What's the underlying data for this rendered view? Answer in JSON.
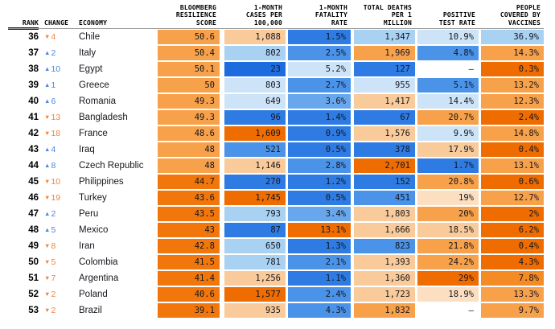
{
  "chart_data": {
    "type": "heatmap",
    "title": "COVID Resilience Ranking (ranks 36-53)",
    "columns": [
      "RANK",
      "CHANGE",
      "ECONOMY",
      "BLOOMBERG\nRESILIENCE\nSCORE",
      "1-MONTH\nCASES PER\n100,000",
      "1-MONTH\nFATALITY\nRATE",
      "TOTAL DEATHS\nPER 1\nMILLION",
      "POSITIVE\nTEST RATE",
      "PEOPLE\nCOVERED BY\nVACCINES"
    ],
    "palette": {
      "B1": "#1c6ce0",
      "B2": "#2e7ce3",
      "B3": "#4a93e8",
      "B4": "#68a7ec",
      "B5": "#a9d1f2",
      "B6": "#cde4f8",
      "W": "#ffffff",
      "O1": "#fcdfc0",
      "O2": "#f9cb9b",
      "O3": "#f7a14b",
      "O4": "#f48b24",
      "O5": "#f1770c",
      "O6": "#ee6c00"
    },
    "change_colors": {
      "up": "#4a86e2",
      "down": "#f0843c"
    },
    "change_icons": {
      "up": "▲",
      "down": "▼"
    },
    "rows": [
      {
        "rank": "36",
        "change": {
          "dir": "down",
          "value": "4"
        },
        "economy": "Chile",
        "cells": [
          {
            "value": "50.6",
            "color": "O3"
          },
          {
            "value": "1,088",
            "color": "O2"
          },
          {
            "value": "1.5%",
            "color": "B2"
          },
          {
            "value": "1,347",
            "color": "B5"
          },
          {
            "value": "10.9%",
            "color": "B6"
          },
          {
            "value": "36.9%",
            "color": "B5"
          }
        ]
      },
      {
        "rank": "37",
        "change": {
          "dir": "up",
          "value": "2"
        },
        "economy": "Italy",
        "cells": [
          {
            "value": "50.4",
            "color": "O3"
          },
          {
            "value": "802",
            "color": "B5"
          },
          {
            "value": "2.5%",
            "color": "B3"
          },
          {
            "value": "1,969",
            "color": "O3"
          },
          {
            "value": "4.8%",
            "color": "B3"
          },
          {
            "value": "14.3%",
            "color": "O3"
          }
        ]
      },
      {
        "rank": "38",
        "change": {
          "dir": "up",
          "value": "10"
        },
        "economy": "Egypt",
        "cells": [
          {
            "value": "50.1",
            "color": "O3"
          },
          {
            "value": "23",
            "color": "B1"
          },
          {
            "value": "5.2%",
            "color": "B6"
          },
          {
            "value": "127",
            "color": "B2"
          },
          {
            "value": "–",
            "color": "W"
          },
          {
            "value": "0.3%",
            "color": "O6"
          }
        ]
      },
      {
        "rank": "39",
        "change": {
          "dir": "up",
          "value": "1"
        },
        "economy": "Greece",
        "cells": [
          {
            "value": "50",
            "color": "O3"
          },
          {
            "value": "803",
            "color": "B6"
          },
          {
            "value": "2.7%",
            "color": "B3"
          },
          {
            "value": "955",
            "color": "B6"
          },
          {
            "value": "5.1%",
            "color": "B3"
          },
          {
            "value": "13.2%",
            "color": "O3"
          }
        ]
      },
      {
        "rank": "40",
        "change": {
          "dir": "up",
          "value": "6"
        },
        "economy": "Romania",
        "cells": [
          {
            "value": "49.3",
            "color": "O3"
          },
          {
            "value": "649",
            "color": "B6"
          },
          {
            "value": "3.6%",
            "color": "B4"
          },
          {
            "value": "1,417",
            "color": "O2"
          },
          {
            "value": "14.4%",
            "color": "B6"
          },
          {
            "value": "12.3%",
            "color": "O3"
          }
        ]
      },
      {
        "rank": "41",
        "change": {
          "dir": "down",
          "value": "13"
        },
        "economy": "Bangladesh",
        "cells": [
          {
            "value": "49.3",
            "color": "O3"
          },
          {
            "value": "96",
            "color": "B2"
          },
          {
            "value": "1.4%",
            "color": "B2"
          },
          {
            "value": "67",
            "color": "B2"
          },
          {
            "value": "20.7%",
            "color": "O3"
          },
          {
            "value": "2.4%",
            "color": "O6"
          }
        ]
      },
      {
        "rank": "42",
        "change": {
          "dir": "down",
          "value": "18"
        },
        "economy": "France",
        "cells": [
          {
            "value": "48.6",
            "color": "O3"
          },
          {
            "value": "1,609",
            "color": "O6"
          },
          {
            "value": "0.9%",
            "color": "B2"
          },
          {
            "value": "1,576",
            "color": "O2"
          },
          {
            "value": "9.9%",
            "color": "B6"
          },
          {
            "value": "14.8%",
            "color": "O3"
          }
        ]
      },
      {
        "rank": "43",
        "change": {
          "dir": "up",
          "value": "4"
        },
        "economy": "Iraq",
        "cells": [
          {
            "value": "48",
            "color": "O3"
          },
          {
            "value": "521",
            "color": "B3"
          },
          {
            "value": "0.5%",
            "color": "B2"
          },
          {
            "value": "378",
            "color": "B2"
          },
          {
            "value": "17.9%",
            "color": "O2"
          },
          {
            "value": "0.4%",
            "color": "O6"
          }
        ]
      },
      {
        "rank": "44",
        "change": {
          "dir": "up",
          "value": "8"
        },
        "economy": "Czech Republic",
        "cells": [
          {
            "value": "48",
            "color": "O3"
          },
          {
            "value": "1,146",
            "color": "O2"
          },
          {
            "value": "2.8%",
            "color": "B3"
          },
          {
            "value": "2,701",
            "color": "O6"
          },
          {
            "value": "1.7%",
            "color": "B2"
          },
          {
            "value": "13.1%",
            "color": "O3"
          }
        ]
      },
      {
        "rank": "45",
        "change": {
          "dir": "down",
          "value": "10"
        },
        "economy": "Philippines",
        "cells": [
          {
            "value": "44.7",
            "color": "O5"
          },
          {
            "value": "270",
            "color": "B2"
          },
          {
            "value": "1.2%",
            "color": "B2"
          },
          {
            "value": "152",
            "color": "B2"
          },
          {
            "value": "20.8%",
            "color": "O3"
          },
          {
            "value": "0.6%",
            "color": "O6"
          }
        ]
      },
      {
        "rank": "46",
        "change": {
          "dir": "down",
          "value": "19"
        },
        "economy": "Turkey",
        "cells": [
          {
            "value": "43.6",
            "color": "O5"
          },
          {
            "value": "1,745",
            "color": "O6"
          },
          {
            "value": "0.5%",
            "color": "B2"
          },
          {
            "value": "451",
            "color": "B3"
          },
          {
            "value": "19%",
            "color": "O1"
          },
          {
            "value": "12.7%",
            "color": "O3"
          }
        ]
      },
      {
        "rank": "47",
        "change": {
          "dir": "up",
          "value": "2"
        },
        "economy": "Peru",
        "cells": [
          {
            "value": "43.5",
            "color": "O5"
          },
          {
            "value": "793",
            "color": "B5"
          },
          {
            "value": "3.4%",
            "color": "B4"
          },
          {
            "value": "1,803",
            "color": "O2"
          },
          {
            "value": "20%",
            "color": "O3"
          },
          {
            "value": "2%",
            "color": "O6"
          }
        ]
      },
      {
        "rank": "48",
        "change": {
          "dir": "up",
          "value": "5"
        },
        "economy": "Mexico",
        "cells": [
          {
            "value": "43",
            "color": "O5"
          },
          {
            "value": "87",
            "color": "B2"
          },
          {
            "value": "13.1%",
            "color": "O6"
          },
          {
            "value": "1,666",
            "color": "O2"
          },
          {
            "value": "18.5%",
            "color": "O2"
          },
          {
            "value": "6.2%",
            "color": "O6"
          }
        ]
      },
      {
        "rank": "49",
        "change": {
          "dir": "down",
          "value": "8"
        },
        "economy": "Iran",
        "cells": [
          {
            "value": "42.8",
            "color": "O5"
          },
          {
            "value": "650",
            "color": "B5"
          },
          {
            "value": "1.3%",
            "color": "B2"
          },
          {
            "value": "823",
            "color": "B3"
          },
          {
            "value": "21.8%",
            "color": "O3"
          },
          {
            "value": "0.4%",
            "color": "O6"
          }
        ]
      },
      {
        "rank": "50",
        "change": {
          "dir": "down",
          "value": "5"
        },
        "economy": "Colombia",
        "cells": [
          {
            "value": "41.5",
            "color": "O5"
          },
          {
            "value": "781",
            "color": "B5"
          },
          {
            "value": "2.1%",
            "color": "B3"
          },
          {
            "value": "1,393",
            "color": "O2"
          },
          {
            "value": "24.2%",
            "color": "O3"
          },
          {
            "value": "4.3%",
            "color": "O6"
          }
        ]
      },
      {
        "rank": "51",
        "change": {
          "dir": "down",
          "value": "7"
        },
        "economy": "Argentina",
        "cells": [
          {
            "value": "41.4",
            "color": "O5"
          },
          {
            "value": "1,256",
            "color": "O2"
          },
          {
            "value": "1.1%",
            "color": "B2"
          },
          {
            "value": "1,360",
            "color": "O2"
          },
          {
            "value": "29%",
            "color": "O6"
          },
          {
            "value": "7.8%",
            "color": "O4"
          }
        ]
      },
      {
        "rank": "52",
        "change": {
          "dir": "down",
          "value": "2"
        },
        "economy": "Poland",
        "cells": [
          {
            "value": "40.6",
            "color": "O5"
          },
          {
            "value": "1,577",
            "color": "O6"
          },
          {
            "value": "2.4%",
            "color": "B3"
          },
          {
            "value": "1,723",
            "color": "O2"
          },
          {
            "value": "18.9%",
            "color": "O1"
          },
          {
            "value": "13.3%",
            "color": "O3"
          }
        ]
      },
      {
        "rank": "53",
        "change": {
          "dir": "down",
          "value": "2"
        },
        "economy": "Brazil",
        "cells": [
          {
            "value": "39.1",
            "color": "O5"
          },
          {
            "value": "935",
            "color": "O2"
          },
          {
            "value": "4.3%",
            "color": "B3"
          },
          {
            "value": "1,832",
            "color": "O3"
          },
          {
            "value": "–",
            "color": "W"
          },
          {
            "value": "9.7%",
            "color": "O3"
          }
        ]
      }
    ]
  }
}
